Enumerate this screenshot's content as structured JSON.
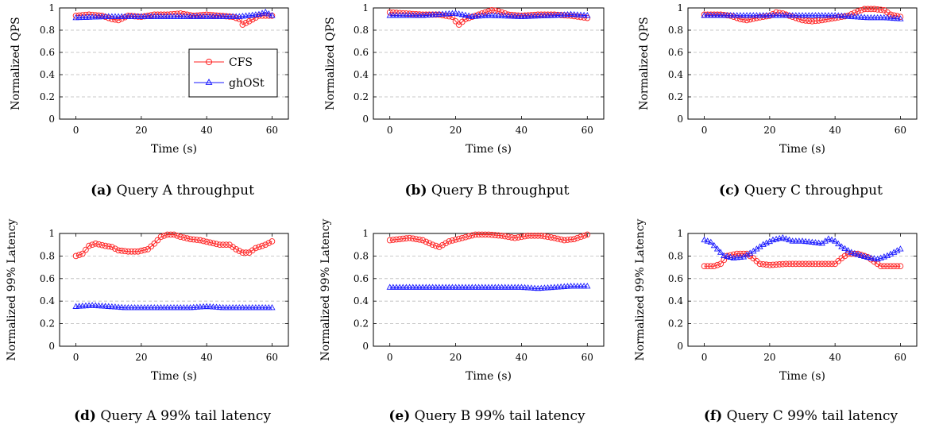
{
  "colors": {
    "cfs": "#ff2020",
    "ghost": "#1a1aff",
    "grid": "#b8b8b8",
    "axis": "#000000"
  },
  "legend": {
    "items": [
      {
        "key": "cfs",
        "label": "CFS",
        "marker": "circle"
      },
      {
        "key": "ghost",
        "label": "ghOSt",
        "marker": "triangle"
      }
    ],
    "placement": "inside panel a, lower-center"
  },
  "chart_data": [
    {
      "type": "line",
      "id": "a",
      "caption_tag": "(a)",
      "caption_text": "Query A throughput",
      "xlabel": "Time (s)",
      "ylabel": "Normalized QPS",
      "xlim": [
        -5,
        65
      ],
      "ylim": [
        0,
        1
      ],
      "xticks": [
        0,
        20,
        40,
        60
      ],
      "yticks": [
        0,
        0.2,
        0.4,
        0.6,
        0.8,
        1
      ],
      "grid": "horizontal dashed",
      "show_legend": true,
      "series": [
        {
          "key": "cfs",
          "name": "CFS",
          "points": [
            [
              0,
              0.93
            ],
            [
              4,
              0.94
            ],
            [
              8,
              0.93
            ],
            [
              11,
              0.9
            ],
            [
              13,
              0.89
            ],
            [
              16,
              0.93
            ],
            [
              20,
              0.92
            ],
            [
              24,
              0.94
            ],
            [
              28,
              0.94
            ],
            [
              32,
              0.95
            ],
            [
              36,
              0.93
            ],
            [
              40,
              0.94
            ],
            [
              44,
              0.93
            ],
            [
              48,
              0.92
            ],
            [
              50,
              0.9
            ],
            [
              51,
              0.85
            ],
            [
              53,
              0.88
            ],
            [
              56,
              0.93
            ],
            [
              60,
              0.93
            ]
          ]
        },
        {
          "key": "ghost",
          "name": "ghOSt",
          "points": [
            [
              0,
              0.91
            ],
            [
              10,
              0.92
            ],
            [
              20,
              0.92
            ],
            [
              30,
              0.92
            ],
            [
              40,
              0.92
            ],
            [
              50,
              0.92
            ],
            [
              56,
              0.94
            ],
            [
              58,
              0.96
            ],
            [
              60,
              0.93
            ]
          ]
        }
      ]
    },
    {
      "type": "line",
      "id": "b",
      "caption_tag": "(b)",
      "caption_text": "Query B throughput",
      "xlabel": "Time (s)",
      "ylabel": "Normalized QPS",
      "xlim": [
        -5,
        65
      ],
      "ylim": [
        0,
        1
      ],
      "xticks": [
        0,
        20,
        40,
        60
      ],
      "yticks": [
        0,
        0.2,
        0.4,
        0.6,
        0.8,
        1
      ],
      "grid": "horizontal dashed",
      "show_legend": false,
      "series": [
        {
          "key": "cfs",
          "name": "CFS",
          "points": [
            [
              0,
              0.96
            ],
            [
              5,
              0.95
            ],
            [
              10,
              0.94
            ],
            [
              15,
              0.94
            ],
            [
              19,
              0.92
            ],
            [
              20,
              0.88
            ],
            [
              21,
              0.85
            ],
            [
              23,
              0.9
            ],
            [
              26,
              0.93
            ],
            [
              29,
              0.96
            ],
            [
              31,
              0.98
            ],
            [
              33,
              0.97
            ],
            [
              36,
              0.94
            ],
            [
              40,
              0.93
            ],
            [
              45,
              0.94
            ],
            [
              50,
              0.94
            ],
            [
              55,
              0.93
            ],
            [
              60,
              0.91
            ]
          ]
        },
        {
          "key": "ghost",
          "name": "ghOSt",
          "points": [
            [
              0,
              0.93
            ],
            [
              10,
              0.93
            ],
            [
              20,
              0.95
            ],
            [
              25,
              0.92
            ],
            [
              30,
              0.93
            ],
            [
              40,
              0.92
            ],
            [
              50,
              0.93
            ],
            [
              55,
              0.94
            ],
            [
              60,
              0.93
            ]
          ]
        }
      ]
    },
    {
      "type": "line",
      "id": "c",
      "caption_tag": "(c)",
      "caption_text": "Query C throughput",
      "xlabel": "Time (s)",
      "ylabel": "Normalized QPS",
      "xlim": [
        -5,
        65
      ],
      "ylim": [
        0,
        1
      ],
      "xticks": [
        0,
        20,
        40,
        60
      ],
      "yticks": [
        0,
        0.2,
        0.4,
        0.6,
        0.8,
        1
      ],
      "grid": "horizontal dashed",
      "show_legend": false,
      "series": [
        {
          "key": "cfs",
          "name": "CFS",
          "points": [
            [
              0,
              0.94
            ],
            [
              5,
              0.94
            ],
            [
              8,
              0.93
            ],
            [
              11,
              0.9
            ],
            [
              13,
              0.89
            ],
            [
              16,
              0.91
            ],
            [
              20,
              0.93
            ],
            [
              22,
              0.96
            ],
            [
              24,
              0.95
            ],
            [
              28,
              0.91
            ],
            [
              30,
              0.89
            ],
            [
              33,
              0.88
            ],
            [
              36,
              0.89
            ],
            [
              40,
              0.91
            ],
            [
              44,
              0.93
            ],
            [
              47,
              0.97
            ],
            [
              49,
              0.99
            ],
            [
              52,
              0.99
            ],
            [
              55,
              0.98
            ],
            [
              57,
              0.94
            ],
            [
              60,
              0.92
            ]
          ]
        },
        {
          "key": "ghost",
          "name": "ghOSt",
          "points": [
            [
              0,
              0.93
            ],
            [
              10,
              0.93
            ],
            [
              20,
              0.93
            ],
            [
              30,
              0.93
            ],
            [
              40,
              0.93
            ],
            [
              45,
              0.92
            ],
            [
              50,
              0.91
            ],
            [
              55,
              0.91
            ],
            [
              60,
              0.9
            ]
          ]
        }
      ]
    },
    {
      "type": "line",
      "id": "d",
      "caption_tag": "(d)",
      "caption_text": "Query A 99% tail latency",
      "xlabel": "Time (s)",
      "ylabel": "Normalized 99% Latency",
      "xlim": [
        -5,
        65
      ],
      "ylim": [
        0,
        1
      ],
      "xticks": [
        0,
        20,
        40,
        60
      ],
      "yticks": [
        0,
        0.2,
        0.4,
        0.6,
        0.8,
        1
      ],
      "grid": "horizontal dashed",
      "show_legend": false,
      "series": [
        {
          "key": "cfs",
          "name": "CFS",
          "points": [
            [
              0,
              0.8
            ],
            [
              2,
              0.82
            ],
            [
              4,
              0.89
            ],
            [
              6,
              0.91
            ],
            [
              9,
              0.89
            ],
            [
              11,
              0.88
            ],
            [
              13,
              0.85
            ],
            [
              16,
              0.84
            ],
            [
              19,
              0.84
            ],
            [
              22,
              0.86
            ],
            [
              24,
              0.91
            ],
            [
              26,
              0.97
            ],
            [
              28,
              0.99
            ],
            [
              30,
              0.99
            ],
            [
              32,
              0.97
            ],
            [
              35,
              0.95
            ],
            [
              38,
              0.94
            ],
            [
              41,
              0.92
            ],
            [
              44,
              0.9
            ],
            [
              47,
              0.9
            ],
            [
              49,
              0.86
            ],
            [
              51,
              0.83
            ],
            [
              53,
              0.83
            ],
            [
              55,
              0.87
            ],
            [
              58,
              0.9
            ],
            [
              60,
              0.93
            ]
          ]
        },
        {
          "key": "ghost",
          "name": "ghOSt",
          "points": [
            [
              0,
              0.35
            ],
            [
              5,
              0.36
            ],
            [
              10,
              0.35
            ],
            [
              15,
              0.34
            ],
            [
              20,
              0.34
            ],
            [
              25,
              0.34
            ],
            [
              30,
              0.34
            ],
            [
              35,
              0.34
            ],
            [
              40,
              0.35
            ],
            [
              45,
              0.34
            ],
            [
              50,
              0.34
            ],
            [
              55,
              0.34
            ],
            [
              60,
              0.34
            ]
          ]
        }
      ]
    },
    {
      "type": "line",
      "id": "e",
      "caption_tag": "(e)",
      "caption_text": "Query B 99% tail latency",
      "xlabel": "Time (s)",
      "ylabel": "Normalized 99% Latency",
      "xlim": [
        -5,
        65
      ],
      "ylim": [
        0,
        1
      ],
      "xticks": [
        0,
        20,
        40,
        60
      ],
      "yticks": [
        0,
        0.2,
        0.4,
        0.6,
        0.8,
        1
      ],
      "grid": "horizontal dashed",
      "show_legend": false,
      "series": [
        {
          "key": "cfs",
          "name": "CFS",
          "points": [
            [
              0,
              0.94
            ],
            [
              3,
              0.95
            ],
            [
              6,
              0.96
            ],
            [
              10,
              0.94
            ],
            [
              13,
              0.9
            ],
            [
              15,
              0.88
            ],
            [
              18,
              0.93
            ],
            [
              22,
              0.96
            ],
            [
              26,
              0.99
            ],
            [
              30,
              0.99
            ],
            [
              34,
              0.98
            ],
            [
              38,
              0.96
            ],
            [
              42,
              0.98
            ],
            [
              46,
              0.98
            ],
            [
              50,
              0.96
            ],
            [
              53,
              0.94
            ],
            [
              56,
              0.95
            ],
            [
              60,
              0.99
            ]
          ]
        },
        {
          "key": "ghost",
          "name": "ghOSt",
          "points": [
            [
              0,
              0.52
            ],
            [
              10,
              0.52
            ],
            [
              20,
              0.52
            ],
            [
              30,
              0.52
            ],
            [
              40,
              0.52
            ],
            [
              45,
              0.51
            ],
            [
              50,
              0.52
            ],
            [
              55,
              0.53
            ],
            [
              60,
              0.53
            ]
          ]
        }
      ]
    },
    {
      "type": "line",
      "id": "f",
      "caption_tag": "(f)",
      "caption_text": "Query C 99% tail latency",
      "xlabel": "Time (s)",
      "ylabel": "Normalized 99% Latency",
      "xlim": [
        -5,
        65
      ],
      "ylim": [
        0,
        1
      ],
      "xticks": [
        0,
        20,
        40,
        60
      ],
      "yticks": [
        0,
        0.2,
        0.4,
        0.6,
        0.8,
        1
      ],
      "grid": "horizontal dashed",
      "show_legend": false,
      "series": [
        {
          "key": "cfs",
          "name": "CFS",
          "points": [
            [
              0,
              0.71
            ],
            [
              3,
              0.71
            ],
            [
              5,
              0.73
            ],
            [
              7,
              0.8
            ],
            [
              10,
              0.82
            ],
            [
              13,
              0.82
            ],
            [
              15,
              0.78
            ],
            [
              17,
              0.73
            ],
            [
              20,
              0.72
            ],
            [
              25,
              0.73
            ],
            [
              30,
              0.73
            ],
            [
              35,
              0.73
            ],
            [
              40,
              0.73
            ],
            [
              42,
              0.78
            ],
            [
              44,
              0.82
            ],
            [
              47,
              0.82
            ],
            [
              50,
              0.79
            ],
            [
              52,
              0.75
            ],
            [
              54,
              0.71
            ],
            [
              60,
              0.71
            ]
          ]
        },
        {
          "key": "ghost",
          "name": "ghOSt",
          "points": [
            [
              0,
              0.94
            ],
            [
              2,
              0.92
            ],
            [
              4,
              0.86
            ],
            [
              6,
              0.8
            ],
            [
              9,
              0.78
            ],
            [
              12,
              0.79
            ],
            [
              15,
              0.84
            ],
            [
              18,
              0.9
            ],
            [
              21,
              0.94
            ],
            [
              24,
              0.96
            ],
            [
              27,
              0.93
            ],
            [
              30,
              0.93
            ],
            [
              33,
              0.92
            ],
            [
              36,
              0.91
            ],
            [
              38,
              0.95
            ],
            [
              40,
              0.93
            ],
            [
              42,
              0.88
            ],
            [
              45,
              0.83
            ],
            [
              48,
              0.8
            ],
            [
              51,
              0.78
            ],
            [
              53,
              0.77
            ],
            [
              56,
              0.8
            ],
            [
              58,
              0.83
            ],
            [
              60,
              0.86
            ]
          ]
        }
      ]
    }
  ]
}
